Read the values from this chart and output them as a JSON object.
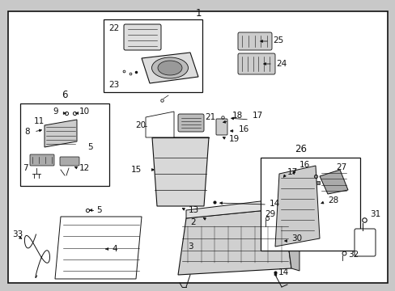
{
  "bg_color": "#c8c8c8",
  "inner_bg": "#ffffff",
  "lc": "#111111",
  "tc": "#111111",
  "fs": 7.5,
  "figsize": [
    4.89,
    3.6
  ],
  "dpi": 100
}
